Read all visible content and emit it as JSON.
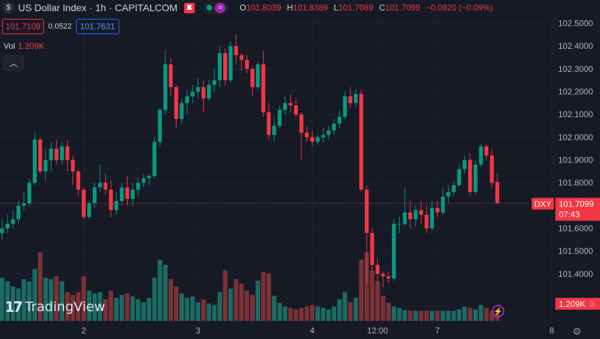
{
  "header": {
    "title": "US Dollar Index · 1h · CAPITALCOM",
    "ohlc": [
      {
        "key": "O",
        "value": "101.8039"
      },
      {
        "key": "H",
        "value": "101.8389"
      },
      {
        "key": "L",
        "value": "101.7089"
      },
      {
        "key": "C",
        "value": "101.7099"
      }
    ],
    "change": "−0.0920 (−0.09%)"
  },
  "price_boxes": {
    "sell": "101.7109",
    "spread": "0.0522",
    "buy": "101.7631"
  },
  "volume": {
    "label": "Vol",
    "value": "1.209K"
  },
  "last_price": {
    "ticker": "DXY",
    "value": "101.7099",
    "countdown": "07:43"
  },
  "volume_tag": "1.209K",
  "volume_axis_tick": "0",
  "logo_text": "TradingView",
  "colors": {
    "up": "#089981",
    "down": "#f23645",
    "up_vol": "#1c6b63",
    "down_vol": "#7c3137",
    "background": "#161a25"
  },
  "chart_data": {
    "type": "candlestick",
    "y_ticks": [
      "102.5000",
      "102.4000",
      "102.3000",
      "102.2000",
      "102.1000",
      "102.0000",
      "101.9000",
      "101.8000",
      "101.7000",
      "101.6000",
      "101.5000",
      "101.4000"
    ],
    "x_ticks": [
      {
        "label": "2",
        "index": 15
      },
      {
        "label": "3",
        "index": 36
      },
      {
        "label": "4",
        "index": 57
      },
      {
        "label": "12:00",
        "index": 69
      },
      {
        "label": "7",
        "index": 80
      },
      {
        "label": "8",
        "index": 101
      }
    ],
    "ylim": [
      101.335,
      102.535
    ],
    "candles": [
      [
        101.58,
        101.64,
        101.55,
        101.6,
        60
      ],
      [
        101.6,
        101.66,
        101.58,
        101.62,
        55
      ],
      [
        101.62,
        101.68,
        101.6,
        101.64,
        48
      ],
      [
        101.64,
        101.72,
        101.62,
        101.7,
        45
      ],
      [
        101.7,
        101.76,
        101.68,
        101.71,
        58
      ],
      [
        101.71,
        101.82,
        101.7,
        101.8,
        55
      ],
      [
        101.8,
        102.02,
        101.79,
        101.99,
        72
      ],
      [
        101.99,
        102.0,
        101.84,
        101.85,
        95
      ],
      [
        101.85,
        101.95,
        101.81,
        101.9,
        60
      ],
      [
        101.9,
        101.98,
        101.85,
        101.95,
        58
      ],
      [
        101.95,
        101.99,
        101.88,
        101.9,
        62
      ],
      [
        101.9,
        101.98,
        101.88,
        101.96,
        55
      ],
      [
        101.96,
        101.99,
        101.85,
        101.9,
        40
      ],
      [
        101.9,
        101.92,
        101.79,
        101.85,
        36
      ],
      [
        101.85,
        101.86,
        101.74,
        101.77,
        40
      ],
      [
        101.77,
        101.78,
        101.64,
        101.65,
        62
      ],
      [
        101.65,
        101.72,
        101.64,
        101.71,
        42
      ],
      [
        101.71,
        101.8,
        101.69,
        101.78,
        38
      ],
      [
        101.78,
        101.88,
        101.76,
        101.8,
        40
      ],
      [
        101.8,
        101.84,
        101.75,
        101.77,
        30
      ],
      [
        101.77,
        101.81,
        101.65,
        101.68,
        42
      ],
      [
        101.68,
        101.76,
        101.66,
        101.72,
        32
      ],
      [
        101.72,
        101.8,
        101.7,
        101.78,
        36
      ],
      [
        101.78,
        101.83,
        101.7,
        101.73,
        38
      ],
      [
        101.73,
        101.8,
        101.7,
        101.77,
        34
      ],
      [
        101.77,
        101.82,
        101.74,
        101.8,
        30
      ],
      [
        101.8,
        101.84,
        101.78,
        101.82,
        26
      ],
      [
        101.82,
        101.84,
        101.79,
        101.83,
        32
      ],
      [
        101.83,
        102.0,
        101.82,
        101.98,
        60
      ],
      [
        101.98,
        102.13,
        101.96,
        102.12,
        85
      ],
      [
        102.12,
        102.38,
        102.1,
        102.32,
        78
      ],
      [
        102.32,
        102.35,
        102.18,
        102.22,
        58
      ],
      [
        102.22,
        102.23,
        102.04,
        102.08,
        48
      ],
      [
        102.08,
        102.17,
        102.06,
        102.15,
        38
      ],
      [
        102.15,
        102.21,
        102.1,
        102.18,
        32
      ],
      [
        102.18,
        102.23,
        102.15,
        102.2,
        34
      ],
      [
        102.2,
        102.26,
        102.17,
        102.22,
        26
      ],
      [
        102.22,
        102.25,
        102.11,
        102.17,
        30
      ],
      [
        102.17,
        102.25,
        102.16,
        102.23,
        24
      ],
      [
        102.23,
        102.3,
        102.2,
        102.25,
        22
      ],
      [
        102.25,
        102.4,
        102.22,
        102.37,
        40
      ],
      [
        102.37,
        102.39,
        102.23,
        102.25,
        70
      ],
      [
        102.25,
        102.42,
        102.24,
        102.4,
        45
      ],
      [
        102.4,
        102.45,
        102.32,
        102.36,
        58
      ],
      [
        102.36,
        102.37,
        102.29,
        102.34,
        52
      ],
      [
        102.34,
        102.36,
        102.28,
        102.3,
        42
      ],
      [
        102.3,
        102.31,
        102.18,
        102.22,
        36
      ],
      [
        102.22,
        102.33,
        102.21,
        102.32,
        56
      ],
      [
        102.32,
        102.38,
        102.09,
        102.11,
        68
      ],
      [
        102.11,
        102.15,
        101.99,
        102.01,
        66
      ],
      [
        102.01,
        102.09,
        101.98,
        102.05,
        35
      ],
      [
        102.05,
        102.14,
        102.04,
        102.12,
        25
      ],
      [
        102.12,
        102.18,
        102.1,
        102.15,
        20
      ],
      [
        102.15,
        102.19,
        102.11,
        102.14,
        18
      ],
      [
        102.14,
        102.17,
        102.09,
        102.1,
        16
      ],
      [
        102.1,
        102.11,
        101.9,
        102.02,
        18
      ],
      [
        102.02,
        102.05,
        101.98,
        102.0,
        20
      ],
      [
        102.0,
        102.03,
        101.96,
        101.98,
        22
      ],
      [
        101.98,
        102.01,
        101.97,
        102.0,
        20
      ],
      [
        102.0,
        102.04,
        101.98,
        102.01,
        18
      ],
      [
        102.01,
        102.05,
        101.99,
        102.03,
        16
      ],
      [
        102.03,
        102.08,
        102.01,
        102.06,
        20
      ],
      [
        102.06,
        102.12,
        102.04,
        102.09,
        30
      ],
      [
        102.09,
        102.2,
        102.08,
        102.18,
        40
      ],
      [
        102.18,
        102.22,
        102.13,
        102.15,
        26
      ],
      [
        102.15,
        102.21,
        102.13,
        102.19,
        32
      ],
      [
        102.19,
        102.21,
        101.76,
        101.77,
        85
      ],
      [
        101.77,
        101.79,
        101.36,
        101.58,
        95
      ],
      [
        101.58,
        101.6,
        101.41,
        101.44,
        70
      ],
      [
        101.44,
        101.47,
        101.36,
        101.4,
        55
      ],
      [
        101.4,
        101.41,
        101.34,
        101.39,
        35
      ],
      [
        101.39,
        101.41,
        101.36,
        101.38,
        25
      ],
      [
        101.38,
        101.64,
        101.37,
        101.62,
        20
      ],
      [
        101.62,
        101.65,
        101.58,
        101.62,
        18
      ],
      [
        101.62,
        101.78,
        101.61,
        101.67,
        15
      ],
      [
        101.67,
        101.72,
        101.6,
        101.64,
        14
      ],
      [
        101.64,
        101.7,
        101.61,
        101.68,
        14
      ],
      [
        101.68,
        101.72,
        101.62,
        101.66,
        14
      ],
      [
        101.66,
        101.7,
        101.58,
        101.6,
        14
      ],
      [
        101.6,
        101.72,
        101.59,
        101.69,
        14
      ],
      [
        101.69,
        101.72,
        101.65,
        101.67,
        14
      ],
      [
        101.67,
        101.78,
        101.66,
        101.74,
        14
      ],
      [
        101.74,
        101.79,
        101.71,
        101.76,
        14
      ],
      [
        101.76,
        101.81,
        101.74,
        101.79,
        14
      ],
      [
        101.79,
        101.88,
        101.78,
        101.86,
        16
      ],
      [
        101.86,
        101.92,
        101.84,
        101.9,
        20
      ],
      [
        101.9,
        101.93,
        101.74,
        101.76,
        18
      ],
      [
        101.76,
        101.9,
        101.75,
        101.88,
        16
      ],
      [
        101.88,
        101.97,
        101.87,
        101.96,
        22
      ],
      [
        101.96,
        101.97,
        101.9,
        101.92,
        18
      ],
      [
        101.92,
        101.95,
        101.78,
        101.8,
        14
      ],
      [
        101.804,
        101.839,
        101.709,
        101.71,
        10
      ]
    ]
  }
}
